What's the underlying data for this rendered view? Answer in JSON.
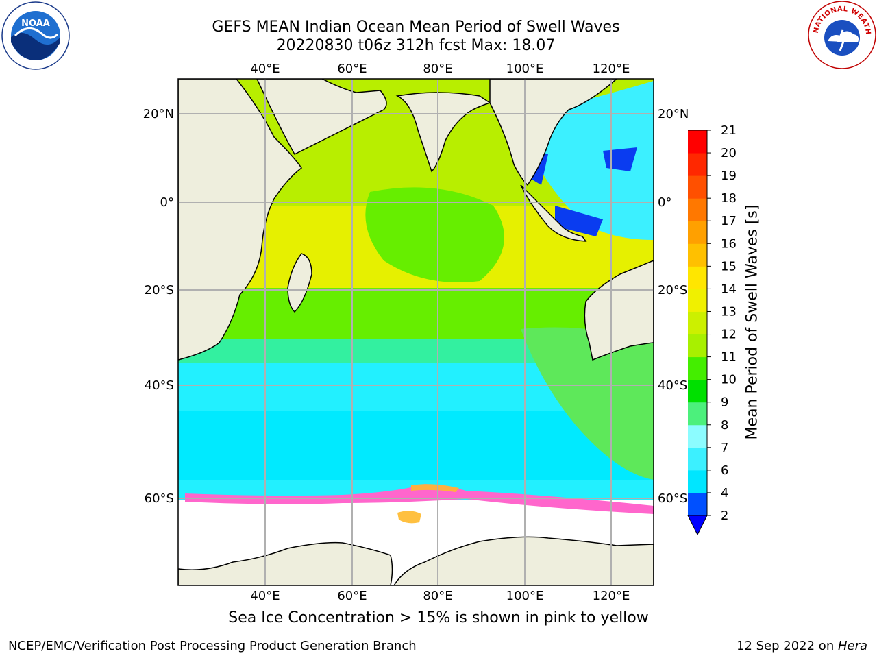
{
  "title": {
    "line1": "GEFS MEAN Indian Ocean Mean Period of Swell Waves",
    "line2": "20220830 t06z 312h fcst   Max: 18.07"
  },
  "map": {
    "lon_labels": [
      "40°E",
      "60°E",
      "80°E",
      "100°E",
      "120°E"
    ],
    "lat_labels_left": [
      "20°N",
      "0°",
      "20°S",
      "40°S",
      "60°S"
    ],
    "lat_labels_right": [
      "20°N",
      "0°",
      "20°S",
      "40°S",
      "60°S"
    ],
    "land_color": "#eeeedd",
    "grid_color": "#b0b0b0"
  },
  "colorbar": {
    "title": "Mean Period of Swell Waves [s]",
    "levels": [
      "2",
      "4",
      "6",
      "7",
      "8",
      "9",
      "10",
      "11",
      "12",
      "13",
      "14",
      "15",
      "16",
      "17",
      "18",
      "19",
      "20",
      "21"
    ],
    "colors": [
      "#0050ff",
      "#00e6ff",
      "#3cf0ff",
      "#8cfcff",
      "#4cf07c",
      "#00e000",
      "#44ee00",
      "#a8f000",
      "#ccf000",
      "#f0f000",
      "#ffe600",
      "#ffc000",
      "#ffa000",
      "#ff7800",
      "#ff5000",
      "#ff2800",
      "#ff0000"
    ],
    "under_color": "#0000ff"
  },
  "caption": "Sea Ice Concentration > 15% is shown in pink to yellow",
  "footer": {
    "left": "NCEP/EMC/Verification Post Processing Product Generation Branch",
    "right_date": "12 Sep 2022 on ",
    "right_machine": "Hera"
  },
  "logos": {
    "left": "NOAA",
    "right": "NATIONAL WEATHER SERVICE"
  }
}
